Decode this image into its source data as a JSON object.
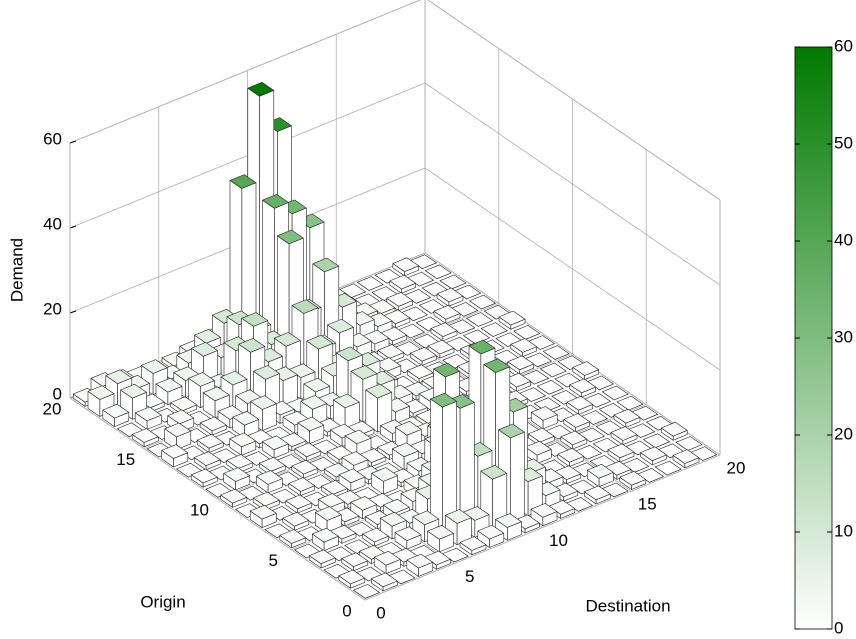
{
  "chart_data": {
    "type": "bar3d",
    "xlabel": "Destination",
    "ylabel": "Origin",
    "zlabel": "Demand",
    "xlim": [
      0,
      20
    ],
    "ylim": [
      0,
      20
    ],
    "zlim": [
      0,
      60
    ],
    "xticks": [
      0,
      5,
      10,
      15,
      20
    ],
    "yticks": [
      0,
      5,
      10,
      15,
      20
    ],
    "zticks": [
      0,
      20,
      40,
      60
    ],
    "grid": true,
    "colormap": [
      "#ffffff",
      "#007a00"
    ],
    "colorbar": {
      "lim": [
        0,
        60
      ],
      "ticks": [
        0,
        10,
        20,
        30,
        40,
        50,
        60
      ]
    },
    "values": [
      [
        0,
        1,
        0,
        2,
        1,
        0,
        1,
        2,
        3,
        1,
        2,
        1,
        0,
        1,
        0,
        1,
        0,
        0,
        1,
        0
      ],
      [
        1,
        0,
        2,
        1,
        0,
        3,
        5,
        4,
        12,
        20,
        8,
        3,
        1,
        0,
        2,
        1,
        0,
        1,
        0,
        0
      ],
      [
        0,
        1,
        1,
        0,
        2,
        4,
        30,
        28,
        15,
        33,
        22,
        6,
        2,
        1,
        0,
        0,
        1,
        0,
        0,
        1
      ],
      [
        1,
        0,
        0,
        1,
        3,
        2,
        6,
        33,
        8,
        35,
        14,
        4,
        1,
        0,
        1,
        0,
        0,
        1,
        0,
        0
      ],
      [
        0,
        2,
        1,
        0,
        1,
        2,
        3,
        5,
        7,
        4,
        3,
        2,
        1,
        2,
        0,
        1,
        0,
        0,
        1,
        0
      ],
      [
        1,
        0,
        3,
        1,
        2,
        1,
        0,
        2,
        4,
        3,
        1,
        0,
        2,
        1,
        1,
        0,
        1,
        0,
        0,
        0
      ],
      [
        0,
        1,
        0,
        2,
        1,
        0,
        3,
        1,
        2,
        6,
        2,
        1,
        0,
        1,
        0,
        2,
        0,
        1,
        0,
        0
      ],
      [
        2,
        0,
        1,
        0,
        1,
        2,
        1,
        0,
        3,
        2,
        5,
        1,
        1,
        0,
        1,
        0,
        0,
        0,
        1,
        0
      ],
      [
        0,
        1,
        0,
        1,
        0,
        1,
        2,
        1,
        1,
        4,
        2,
        0,
        1,
        2,
        0,
        1,
        0,
        0,
        0,
        1
      ],
      [
        1,
        0,
        2,
        0,
        1,
        0,
        1,
        3,
        0,
        2,
        1,
        1,
        0,
        1,
        1,
        0,
        1,
        0,
        0,
        0
      ],
      [
        0,
        2,
        0,
        1,
        0,
        1,
        0,
        2,
        1,
        8,
        3,
        1,
        2,
        0,
        1,
        0,
        0,
        1,
        0,
        0
      ],
      [
        1,
        0,
        1,
        0,
        2,
        1,
        3,
        1,
        5,
        10,
        7,
        2,
        1,
        1,
        0,
        1,
        0,
        0,
        1,
        0
      ],
      [
        0,
        1,
        0,
        2,
        1,
        0,
        2,
        4,
        3,
        12,
        9,
        3,
        0,
        1,
        0,
        0,
        1,
        0,
        0,
        0
      ],
      [
        2,
        0,
        1,
        0,
        3,
        5,
        2,
        1,
        4,
        6,
        3,
        1,
        2,
        0,
        1,
        1,
        0,
        0,
        0,
        1
      ],
      [
        0,
        3,
        0,
        1,
        2,
        4,
        8,
        6,
        5,
        10,
        4,
        2,
        1,
        1,
        0,
        0,
        1,
        0,
        0,
        0
      ],
      [
        1,
        0,
        2,
        0,
        4,
        6,
        12,
        8,
        10,
        16,
        6,
        8,
        3,
        2,
        1,
        0,
        0,
        1,
        0,
        0
      ],
      [
        0,
        2,
        0,
        1,
        5,
        3,
        10,
        14,
        8,
        30,
        12,
        20,
        10,
        4,
        2,
        1,
        0,
        0,
        1,
        0
      ],
      [
        2,
        5,
        1,
        3,
        4,
        8,
        6,
        12,
        9,
        36,
        33,
        28,
        6,
        3,
        2,
        1,
        1,
        0,
        0,
        0
      ],
      [
        4,
        6,
        3,
        5,
        2,
        4,
        7,
        10,
        40,
        60,
        50,
        4,
        5,
        2,
        1,
        0,
        0,
        1,
        0,
        0
      ],
      [
        1,
        3,
        2,
        1,
        0,
        1,
        2,
        3,
        2,
        4,
        3,
        2,
        1,
        0,
        1,
        0,
        0,
        0,
        1,
        0
      ]
    ]
  }
}
